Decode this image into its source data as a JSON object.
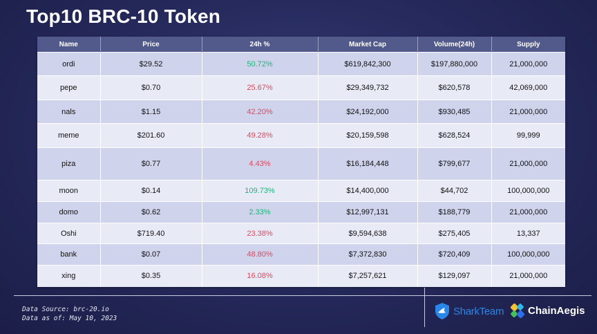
{
  "title": "Top10 BRC-10 Token",
  "table": {
    "headers": [
      "Name",
      "Price",
      "24h %",
      "Market Cap",
      "Volume(24h)",
      "Supply"
    ],
    "rows": [
      {
        "name": "ordi",
        "price": "$29.52",
        "change": "50.72%",
        "change_dir": "up",
        "market_cap": "$619,842,300",
        "volume": "$197,880,000",
        "supply": "21,000,000"
      },
      {
        "name": "pepe",
        "price": "$0.70",
        "change": "25.67%",
        "change_dir": "down",
        "market_cap": "$29,349,732",
        "volume": "$620,578",
        "supply": "42,069,000"
      },
      {
        "name": "nals",
        "price": "$1.15",
        "change": "42.20%",
        "change_dir": "down",
        "market_cap": "$24,192,000",
        "volume": "$930,485",
        "supply": "21,000,000"
      },
      {
        "name": "meme",
        "price": "$201.60",
        "change": "49.28%",
        "change_dir": "down",
        "market_cap": "$20,159,598",
        "volume": "$628,524",
        "supply": "99,999"
      },
      {
        "name": "piza",
        "price": "$0.77",
        "change": "4.43%",
        "change_dir": "down",
        "market_cap": "$16,184,448",
        "volume": "$799,677",
        "supply": "21,000,000"
      },
      {
        "name": "moon",
        "price": "$0.14",
        "change": "109.73%",
        "change_dir": "up",
        "market_cap": "$14,400,000",
        "volume": "$44,702",
        "supply": "100,000,000"
      },
      {
        "name": "domo",
        "price": "$0.62",
        "change": "2.33%",
        "change_dir": "up",
        "market_cap": "$12,997,131",
        "volume": "$188,779",
        "supply": "21,000,000"
      },
      {
        "name": "Oshi",
        "price": "$719.40",
        "change": "23.38%",
        "change_dir": "down",
        "market_cap": "$9,594,638",
        "volume": "$275,405",
        "supply": "13,337"
      },
      {
        "name": "bank",
        "price": "$0.07",
        "change": "48.80%",
        "change_dir": "down",
        "market_cap": "$7,372,830",
        "volume": "$720,409",
        "supply": "100,000,000"
      },
      {
        "name": "xing",
        "price": "$0.35",
        "change": "16.08%",
        "change_dir": "down",
        "market_cap": "$7,257,621",
        "volume": "$129,097",
        "supply": "21,000,000"
      }
    ]
  },
  "footer": {
    "data_source": "Data Source: brc-20.io",
    "data_date": "Data as of: May 10, 2023"
  },
  "logos": {
    "sharkteam": {
      "text": "SharkTeam",
      "icon": "shark-shield-icon",
      "color": "#2a86e8"
    },
    "chainaegis": {
      "text": "ChainAegis",
      "icon": "chainaegis-mark-icon"
    }
  },
  "colors": {
    "positive": "#1db57a",
    "negative": "#e0485a",
    "header_bg": "#525a8c"
  }
}
